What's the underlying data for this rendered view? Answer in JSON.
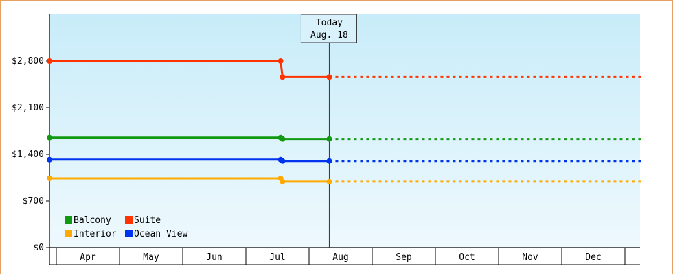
{
  "chart_data": {
    "type": "line",
    "title": "",
    "xlabel": "",
    "ylabel": "",
    "categories": [
      "Apr",
      "May",
      "Jun",
      "Jul",
      "Aug",
      "Sep",
      "Oct",
      "Nov",
      "Dec"
    ],
    "ylim": [
      0,
      3500
    ],
    "yticks": [
      {
        "value": 0,
        "label": "$0"
      },
      {
        "value": 700,
        "label": "$700"
      },
      {
        "value": 1400,
        "label": "$1,400"
      },
      {
        "value": 2100,
        "label": "$2,100"
      },
      {
        "value": 2800,
        "label": "$2,800"
      }
    ],
    "today": {
      "line1": "Today",
      "line2": "Aug. 18",
      "x": 4.32
    },
    "series": [
      {
        "name": "Suite",
        "color": "#ff3300",
        "actual": [
          [
            0,
            2800
          ],
          [
            3.55,
            2800
          ],
          [
            3.58,
            2560
          ],
          [
            4.32,
            2560
          ]
        ],
        "markers": [
          [
            0,
            2800
          ],
          [
            3.55,
            2800
          ],
          [
            3.58,
            2560
          ],
          [
            4.32,
            2560
          ]
        ],
        "projected": [
          [
            4.32,
            2560
          ],
          [
            9.28,
            2560
          ]
        ]
      },
      {
        "name": "Balcony",
        "color": "#119911",
        "actual": [
          [
            0,
            1650
          ],
          [
            3.55,
            1650
          ],
          [
            3.58,
            1630
          ],
          [
            4.32,
            1630
          ]
        ],
        "markers": [
          [
            0,
            1650
          ],
          [
            3.55,
            1650
          ],
          [
            3.58,
            1630
          ],
          [
            4.32,
            1630
          ]
        ],
        "projected": [
          [
            4.32,
            1630
          ],
          [
            9.28,
            1630
          ]
        ]
      },
      {
        "name": "Ocean View",
        "color": "#0033ee",
        "actual": [
          [
            0,
            1320
          ],
          [
            3.55,
            1320
          ],
          [
            3.58,
            1300
          ],
          [
            4.32,
            1300
          ]
        ],
        "markers": [
          [
            0,
            1320
          ],
          [
            3.55,
            1320
          ],
          [
            3.58,
            1300
          ],
          [
            4.32,
            1300
          ]
        ],
        "projected": [
          [
            4.32,
            1300
          ],
          [
            9.28,
            1300
          ]
        ]
      },
      {
        "name": "Interior",
        "color": "#ffaa00",
        "actual": [
          [
            0,
            1040
          ],
          [
            3.55,
            1040
          ],
          [
            3.58,
            990
          ],
          [
            4.32,
            990
          ]
        ],
        "markers": [
          [
            0,
            1040
          ],
          [
            3.55,
            1040
          ],
          [
            3.58,
            990
          ],
          [
            4.32,
            990
          ]
        ],
        "projected": [
          [
            4.32,
            990
          ],
          [
            9.28,
            990
          ]
        ]
      }
    ],
    "legend": {
      "placement": "bottom-left",
      "items": [
        {
          "label": "Balcony",
          "color": "#119911"
        },
        {
          "label": "Suite",
          "color": "#ff3300"
        },
        {
          "label": "Interior",
          "color": "#ffaa00"
        },
        {
          "label": "Ocean View",
          "color": "#0033ee"
        }
      ]
    },
    "grid": false
  }
}
